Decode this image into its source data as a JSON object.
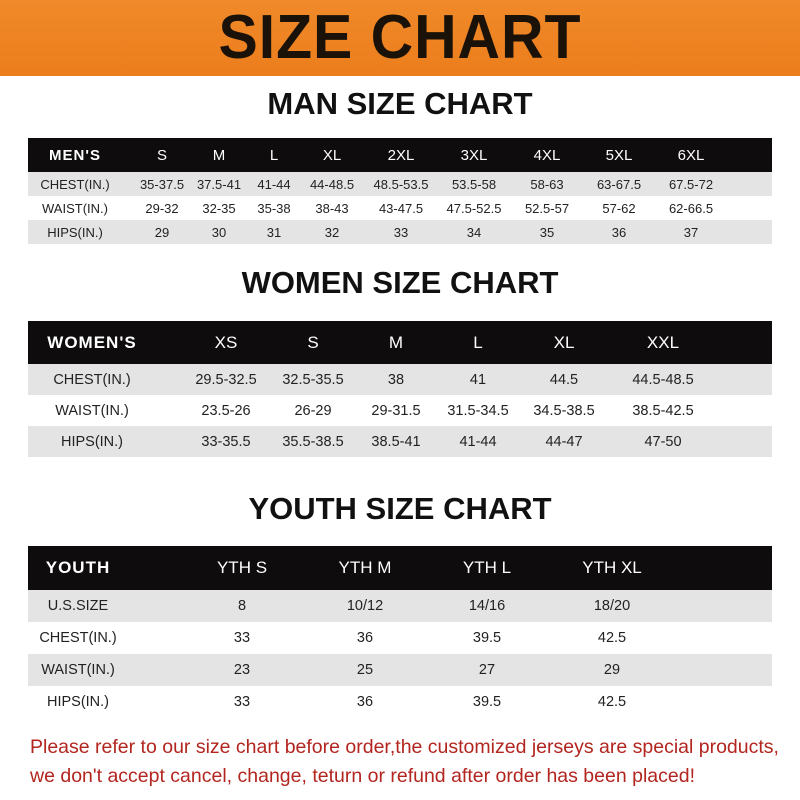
{
  "banner": {
    "title": "SIZE CHART",
    "color": "#ee8322"
  },
  "men": {
    "title": "MAN SIZE CHART",
    "header": [
      "MEN'S",
      "S",
      "M",
      "L",
      "XL",
      "2XL",
      "3XL",
      "4XL",
      "5XL",
      "6XL"
    ],
    "rows": [
      [
        "CHEST(IN.)",
        "35-37.5",
        "37.5-41",
        "41-44",
        "44-48.5",
        "48.5-53.5",
        "53.5-58",
        "58-63",
        "63-67.5",
        "67.5-72"
      ],
      [
        "WAIST(IN.)",
        "29-32",
        "32-35",
        "35-38",
        "38-43",
        "43-47.5",
        "47.5-52.5",
        "52.5-57",
        "57-62",
        "62-66.5"
      ],
      [
        "HIPS(IN.)",
        "29",
        "30",
        "31",
        "32",
        "33",
        "34",
        "35",
        "36",
        "37"
      ]
    ]
  },
  "women": {
    "title": "WOMEN SIZE CHART",
    "header": [
      "WOMEN'S",
      "XS",
      "S",
      "M",
      "L",
      "XL",
      "XXL"
    ],
    "rows": [
      [
        "CHEST(IN.)",
        "29.5-32.5",
        "32.5-35.5",
        "38",
        "41",
        "44.5",
        "44.5-48.5"
      ],
      [
        "WAIST(IN.)",
        "23.5-26",
        "26-29",
        "29-31.5",
        "31.5-34.5",
        "34.5-38.5",
        "38.5-42.5"
      ],
      [
        "HIPS(IN.)",
        "33-35.5",
        "35.5-38.5",
        "38.5-41",
        "41-44",
        "44-47",
        "47-50"
      ]
    ]
  },
  "youth": {
    "title": "YOUTH SIZE CHART",
    "header": [
      "YOUTH",
      "YTH S",
      "YTH M",
      "YTH L",
      "YTH XL"
    ],
    "rows": [
      [
        "U.S.SIZE",
        "8",
        "10/12",
        "14/16",
        "18/20"
      ],
      [
        "CHEST(IN.)",
        "33",
        "36",
        "39.5",
        "42.5"
      ],
      [
        "WAIST(IN.)",
        "23",
        "25",
        "27",
        "29"
      ],
      [
        "HIPS(IN.)",
        "33",
        "36",
        "39.5",
        "42.5"
      ]
    ]
  },
  "footer": {
    "line1": "Please refer to our size chart before order,the customized jerseys are special products,",
    "line2": "we don't accept cancel, change, teturn or refund after order has been placed!"
  }
}
